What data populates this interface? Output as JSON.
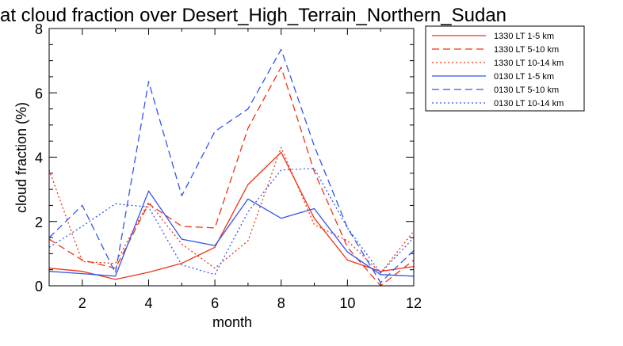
{
  "chart_data": {
    "type": "line",
    "title": "at cloud fraction over Desert_High_Terrain_Northern_Sudan",
    "xlabel": "month",
    "ylabel": "cloud fraction (%)",
    "xlim": [
      1,
      12
    ],
    "ylim": [
      0,
      8
    ],
    "xticks": [
      2,
      4,
      6,
      8,
      10,
      12
    ],
    "yticks": [
      0,
      2,
      4,
      6,
      8
    ],
    "legend_position": "outside-top-right",
    "x": [
      1,
      2,
      3,
      4,
      5,
      6,
      7,
      8,
      9,
      10,
      11,
      12
    ],
    "series": [
      {
        "name": "1330 LT 1-5 km",
        "color": "#ee3311",
        "dash": "solid",
        "values": [
          0.55,
          0.45,
          0.2,
          0.42,
          0.7,
          1.2,
          3.15,
          4.15,
          2.1,
          0.8,
          0.45,
          0.6
        ]
      },
      {
        "name": "1330 LT 5-10 km",
        "color": "#ee3311",
        "dash": "dashed",
        "values": [
          1.45,
          0.8,
          0.55,
          2.55,
          1.85,
          1.8,
          4.9,
          6.8,
          3.55,
          1.2,
          0.0,
          0.8
        ]
      },
      {
        "name": "1330 LT 10-14 km",
        "color": "#ee3311",
        "dash": "dotted",
        "values": [
          3.6,
          0.75,
          0.7,
          2.6,
          1.3,
          0.55,
          1.4,
          4.3,
          1.9,
          1.4,
          0.4,
          1.7
        ]
      },
      {
        "name": "0130 LT 1-5 km",
        "color": "#3355ee",
        "dash": "solid",
        "values": [
          0.45,
          0.38,
          0.3,
          2.95,
          1.45,
          1.25,
          2.7,
          2.1,
          2.4,
          1.05,
          0.35,
          0.3
        ]
      },
      {
        "name": "0130 LT 5-10 km",
        "color": "#3355ee",
        "dash": "dashed",
        "values": [
          1.5,
          2.5,
          0.4,
          6.35,
          2.8,
          4.8,
          5.5,
          7.35,
          4.35,
          1.8,
          0.1,
          1.1
        ]
      },
      {
        "name": "0130 LT 10-14 km",
        "color": "#3355ee",
        "dash": "dotted",
        "values": [
          1.2,
          1.85,
          2.55,
          2.45,
          0.65,
          0.35,
          2.3,
          3.6,
          3.65,
          1.8,
          0.4,
          1.5
        ]
      }
    ]
  }
}
